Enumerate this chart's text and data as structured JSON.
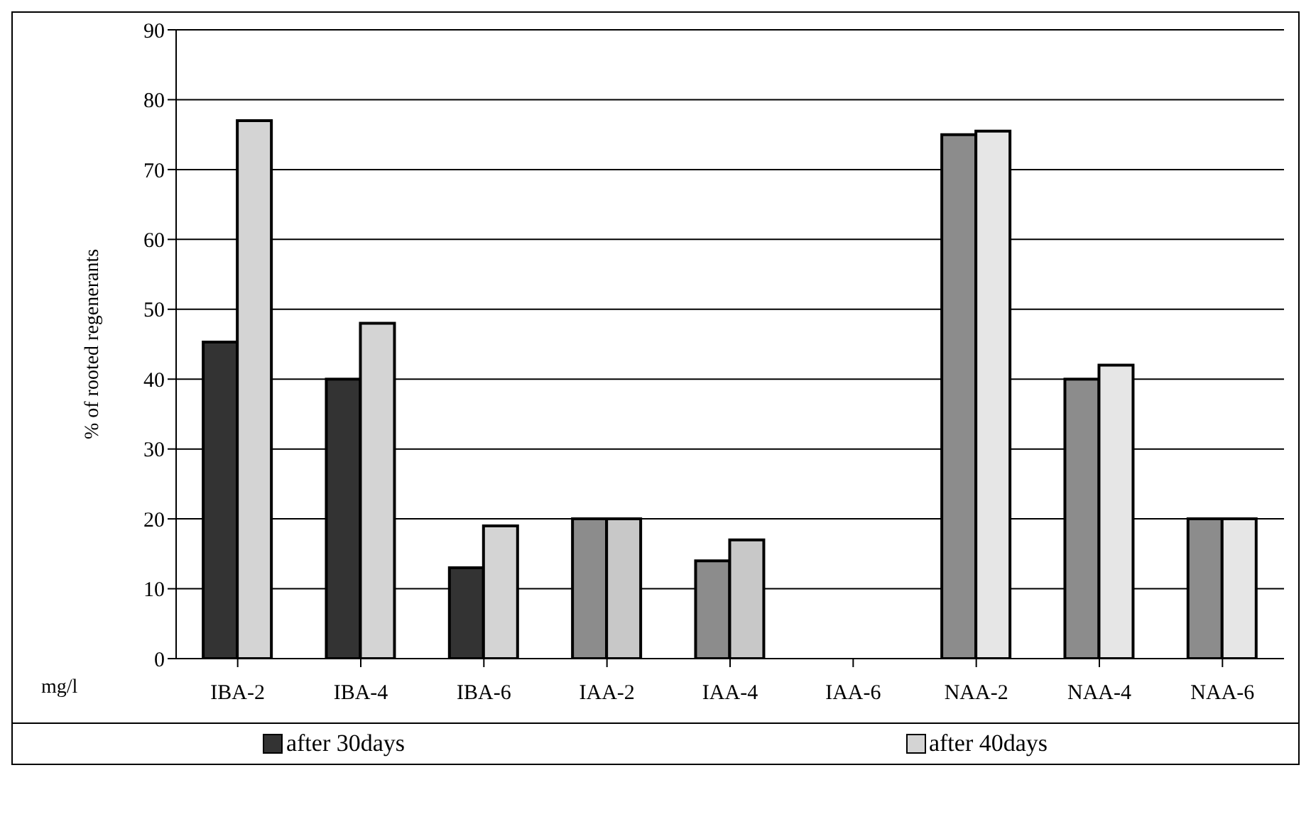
{
  "chart_data": {
    "type": "bar",
    "ylabel": "% of rooted regenerants",
    "categories": [
      "IBA-2",
      "IBA-4",
      "IBA-6",
      "IAA-2",
      "IAA-4",
      "IAA-6",
      "NAA-2",
      "NAA-4",
      "NAA-6"
    ],
    "series": [
      {
        "name": "after 30days",
        "color": "#333333",
        "colors": [
          "#333333",
          "#333333",
          "#333333",
          "#8c8c8c",
          "#8c8c8c",
          "#8c8c8c",
          "#8c8c8c",
          "#8c8c8c",
          "#8c8c8c"
        ],
        "values": [
          45.3,
          40,
          13,
          20,
          14,
          0,
          75,
          40,
          20
        ]
      },
      {
        "name": "after 40days",
        "color": "#d4d4d4",
        "colors": [
          "#d4d4d4",
          "#d4d4d4",
          "#d4d4d4",
          "#c8c8c8",
          "#c8c8c8",
          "#c8c8c8",
          "#e6e6e6",
          "#e6e6e6",
          "#e6e6e6"
        ],
        "values": [
          77,
          48,
          19,
          20,
          17,
          0,
          75.5,
          42,
          20
        ]
      }
    ],
    "ylim": [
      0,
      90
    ],
    "yticks": [
      0,
      10,
      20,
      30,
      40,
      50,
      60,
      70,
      80,
      90
    ],
    "grid": "y",
    "legend": "bottom",
    "annotations": [
      "mg/l"
    ]
  }
}
